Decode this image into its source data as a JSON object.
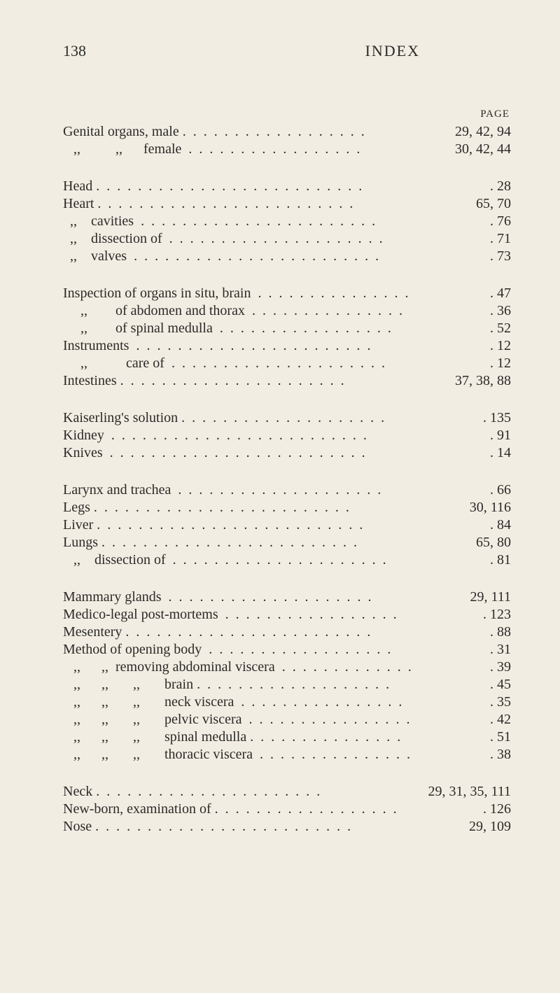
{
  "header": {
    "page_number": "138",
    "title": "INDEX",
    "page_label": "PAGE"
  },
  "groups": [
    [
      {
        "text": "Genital organs, male .",
        "pages": "29, 42, 94"
      },
      {
        "text": "   ,,          ,,      female",
        "pages": "30, 42, 44"
      }
    ],
    [
      {
        "text": "Head .",
        "pages": ". 28"
      },
      {
        "text": "Heart .",
        "pages": "65, 70"
      },
      {
        "text": "  ,,    cavities",
        "pages": ". 76"
      },
      {
        "text": "  ,,    dissection of",
        "pages": ". 71"
      },
      {
        "text": "  ,,    valves",
        "pages": ". 73"
      }
    ],
    [
      {
        "text": "Inspection of organs in situ, brain",
        "pages": ". 47"
      },
      {
        "text": "     ,,        of abdomen and thorax",
        "pages": ". 36"
      },
      {
        "text": "     ,,        of spinal medulla",
        "pages": ". 52"
      },
      {
        "text": "Instruments",
        "pages": ". 12"
      },
      {
        "text": "     ,,           care of  .",
        "pages": ". 12"
      },
      {
        "text": "Intestines .",
        "pages": "37, 38, 88"
      }
    ],
    [
      {
        "text": "Kaiserling's solution .",
        "pages": ". 135"
      },
      {
        "text": "Kidney",
        "pages": ". 91"
      },
      {
        "text": "Knives",
        "pages": ". 14"
      }
    ],
    [
      {
        "text": "Larynx and trachea",
        "pages": ". 66"
      },
      {
        "text": "Legs .",
        "pages": "30, 116"
      },
      {
        "text": "Liver .",
        "pages": ". 84"
      },
      {
        "text": "Lungs .",
        "pages": "65, 80"
      },
      {
        "text": "   ,,    dissection of  .",
        "pages": ". 81"
      }
    ],
    [
      {
        "text": "Mammary glands",
        "pages": "29, 111"
      },
      {
        "text": "Medico-legal post-mortems",
        "pages": ". 123"
      },
      {
        "text": "Mesentery .",
        "pages": ". 88"
      },
      {
        "text": "Method of opening body  .",
        "pages": ". 31"
      },
      {
        "text": "   ,,      ,,  removing abdominal viscera",
        "pages": ". 39"
      },
      {
        "text": "   ,,      ,,       ,,       brain .",
        "pages": ". 45"
      },
      {
        "text": "   ,,      ,,       ,,       neck viscera",
        "pages": ". 35"
      },
      {
        "text": "   ,,      ,,       ,,       pelvic viscera  .",
        "pages": ". 42"
      },
      {
        "text": "   ,,      ,,       ,,       spinal medulla .",
        "pages": ". 51"
      },
      {
        "text": "   ,,      ,,       ,,       thoracic viscera",
        "pages": ". 38"
      }
    ],
    [
      {
        "text": "Neck .",
        "pages": "29, 31, 35, 111"
      },
      {
        "text": "New-born, examination of .",
        "pages": ". 126"
      },
      {
        "text": "Nose .",
        "pages": "29, 109"
      }
    ]
  ]
}
